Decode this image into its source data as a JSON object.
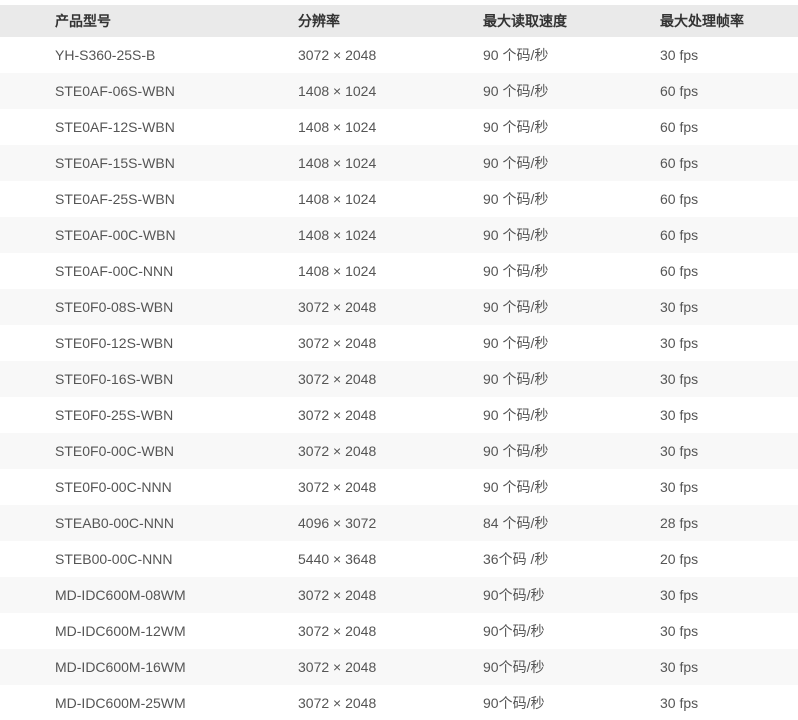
{
  "table": {
    "columns": [
      {
        "key": "model",
        "label": "产品型号"
      },
      {
        "key": "resolution",
        "label": "分辨率"
      },
      {
        "key": "speed",
        "label": "最大读取速度"
      },
      {
        "key": "fps",
        "label": "最大处理帧率"
      }
    ],
    "rows": [
      {
        "model": "YH-S360-25S-B",
        "resolution": "3072 × 2048",
        "speed": "90 个码/秒",
        "fps": "30 fps"
      },
      {
        "model": "STE0AF-06S-WBN",
        "resolution": "1408 × 1024",
        "speed": "90 个码/秒",
        "fps": "60 fps"
      },
      {
        "model": "STE0AF-12S-WBN",
        "resolution": "1408 × 1024",
        "speed": "90 个码/秒",
        "fps": "60 fps"
      },
      {
        "model": "STE0AF-15S-WBN",
        "resolution": "1408 × 1024",
        "speed": "90 个码/秒",
        "fps": "60 fps"
      },
      {
        "model": "STE0AF-25S-WBN",
        "resolution": "1408 × 1024",
        "speed": "90 个码/秒",
        "fps": "60 fps"
      },
      {
        "model": "STE0AF-00C-WBN",
        "resolution": "1408 × 1024",
        "speed": "90 个码/秒",
        "fps": "60 fps"
      },
      {
        "model": "STE0AF-00C-NNN",
        "resolution": "1408 × 1024",
        "speed": "90 个码/秒",
        "fps": "60 fps"
      },
      {
        "model": "STE0F0-08S-WBN",
        "resolution": "3072 × 2048",
        "speed": "90 个码/秒",
        "fps": "30 fps"
      },
      {
        "model": "STE0F0-12S-WBN",
        "resolution": "3072 × 2048",
        "speed": "90 个码/秒",
        "fps": "30 fps"
      },
      {
        "model": "STE0F0-16S-WBN",
        "resolution": "3072 × 2048",
        "speed": "90 个码/秒",
        "fps": "30 fps"
      },
      {
        "model": "STE0F0-25S-WBN",
        "resolution": "3072 × 2048",
        "speed": "90 个码/秒",
        "fps": "30 fps"
      },
      {
        "model": "STE0F0-00C-WBN",
        "resolution": "3072 × 2048",
        "speed": "90 个码/秒",
        "fps": "30 fps"
      },
      {
        "model": "STE0F0-00C-NNN",
        "resolution": "3072 × 2048",
        "speed": "90 个码/秒",
        "fps": "30 fps"
      },
      {
        "model": "STEAB0-00C-NNN",
        "resolution": "4096 × 3072",
        "speed": "84 个码/秒",
        "fps": "28 fps"
      },
      {
        "model": "STEB00-00C-NNN",
        "resolution": "5440 × 3648",
        "speed": "36个码 /秒",
        "fps": "20 fps"
      },
      {
        "model": "MD-IDC600M-08WM",
        "resolution": "3072 × 2048",
        "speed": "90个码/秒",
        "fps": "30 fps"
      },
      {
        "model": "MD-IDC600M-12WM",
        "resolution": "3072 × 2048",
        "speed": "90个码/秒",
        "fps": "30 fps"
      },
      {
        "model": "MD-IDC600M-16WM",
        "resolution": "3072 × 2048",
        "speed": "90个码/秒",
        "fps": "30 fps"
      },
      {
        "model": "MD-IDC600M-25WM",
        "resolution": "3072 × 2048",
        "speed": "90个码/秒",
        "fps": "30 fps"
      }
    ]
  },
  "colors": {
    "header_bg": "#eaeaea",
    "stripe_bg": "#f8f8f8",
    "row_bg": "#ffffff",
    "header_text": "#333333",
    "body_text": "#555555",
    "bottom_border": "#e6e6e6"
  }
}
